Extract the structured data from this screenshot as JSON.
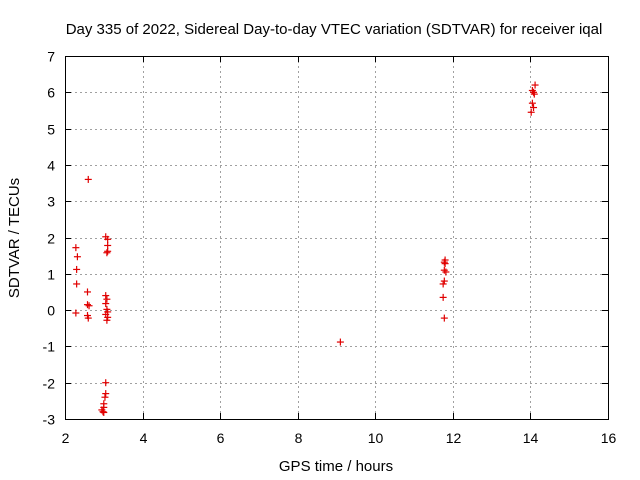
{
  "chart_data": {
    "type": "scatter",
    "title": "Day 335 of 2022, Sidereal Day-to-day VTEC variation (SDTVAR) for receiver iqal",
    "xlabel": "GPS time / hours",
    "ylabel": "SDTVAR / TECUs",
    "xlim": [
      2,
      16
    ],
    "ylim": [
      -3,
      7
    ],
    "xticks": [
      2,
      4,
      6,
      8,
      10,
      12,
      14,
      16
    ],
    "yticks": [
      -3,
      -2,
      -1,
      0,
      1,
      2,
      3,
      4,
      5,
      6,
      7
    ],
    "grid": true,
    "marker": "+",
    "color": "#e00000",
    "series": [
      {
        "name": "SDTVAR",
        "points": [
          [
            2.28,
            1.72
          ],
          [
            2.32,
            1.47
          ],
          [
            2.3,
            1.12
          ],
          [
            2.3,
            0.72
          ],
          [
            2.28,
            -0.08
          ],
          [
            2.6,
            3.6
          ],
          [
            2.58,
            0.5
          ],
          [
            2.58,
            0.15
          ],
          [
            2.62,
            0.12
          ],
          [
            2.58,
            -0.15
          ],
          [
            2.6,
            -0.22
          ],
          [
            3.05,
            2.02
          ],
          [
            3.1,
            1.95
          ],
          [
            3.1,
            1.78
          ],
          [
            3.1,
            1.62
          ],
          [
            3.08,
            1.58
          ],
          [
            3.05,
            0.4
          ],
          [
            3.08,
            0.3
          ],
          [
            3.05,
            0.18
          ],
          [
            3.08,
            0.02
          ],
          [
            3.1,
            -0.05
          ],
          [
            3.05,
            -0.12
          ],
          [
            3.1,
            -0.2
          ],
          [
            3.08,
            -0.28
          ],
          [
            3.05,
            -2.0
          ],
          [
            3.05,
            -2.3
          ],
          [
            3.03,
            -2.4
          ],
          [
            3.0,
            -2.58
          ],
          [
            3.0,
            -2.68
          ],
          [
            2.95,
            -2.75
          ],
          [
            2.98,
            -2.8
          ],
          [
            3.0,
            -2.82
          ],
          [
            9.1,
            -0.88
          ],
          [
            11.8,
            1.38
          ],
          [
            11.78,
            1.32
          ],
          [
            11.8,
            1.28
          ],
          [
            11.78,
            1.1
          ],
          [
            11.82,
            1.05
          ],
          [
            11.78,
            0.8
          ],
          [
            11.75,
            0.72
          ],
          [
            11.75,
            0.35
          ],
          [
            11.78,
            -0.22
          ],
          [
            14.12,
            6.2
          ],
          [
            14.05,
            6.05
          ],
          [
            14.08,
            6.0
          ],
          [
            14.1,
            5.95
          ],
          [
            14.05,
            5.7
          ],
          [
            14.08,
            5.58
          ],
          [
            14.02,
            5.45
          ]
        ]
      }
    ]
  }
}
